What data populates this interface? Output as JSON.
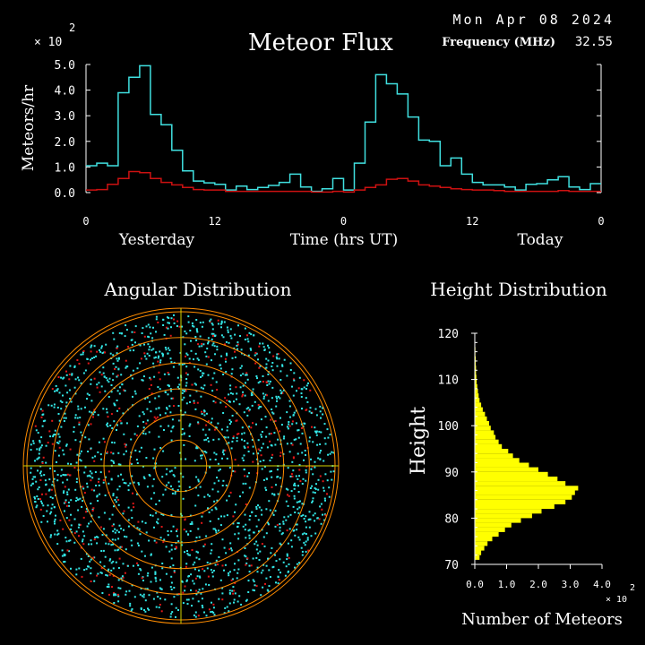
{
  "header": {
    "date": "Mon Apr 08 2024",
    "title": "Meteor Flux",
    "frequency_label": "Frequency (MHz)",
    "frequency_value": "32.55",
    "flux_multiplier": "× 10",
    "flux_exponent": "2"
  },
  "colors": {
    "background": "#000000",
    "text": "#ffffff",
    "line_total": "#40e0e0",
    "line_low": "#cc1111",
    "ring": "#ff8c00",
    "crosshair": "#d4d400",
    "points_cyan": "#33e6e6",
    "points_red": "#e01818",
    "histogram": "#ffff00"
  },
  "chart_data": [
    {
      "type": "line",
      "name": "meteor-flux",
      "ylabel": "Meteors/hr",
      "ylim": [
        0,
        5
      ],
      "yticks": [
        "0.0",
        "1.0",
        "2.0",
        "3.0",
        "4.0",
        "5.0"
      ],
      "xlim": [
        0,
        48
      ],
      "xticks": [
        "0",
        "12",
        "0",
        "12",
        "0"
      ],
      "xlabels": {
        "left": "Yesterday",
        "center": "Time (hrs UT)",
        "right": "Today"
      },
      "step": true,
      "series": [
        {
          "values": [
            1.05,
            1.15,
            1.05,
            3.9,
            4.5,
            4.95,
            3.05,
            2.65,
            1.65,
            0.85,
            0.45,
            0.38,
            0.32,
            0.1,
            0.25,
            0.12,
            0.2,
            0.28,
            0.4,
            0.72,
            0.22,
            0.05,
            0.15,
            0.55,
            0.1,
            1.15,
            2.75,
            4.6,
            4.25,
            3.85,
            2.95,
            2.05,
            2.0,
            1.05,
            1.35,
            0.72,
            0.4,
            0.3,
            0.3,
            0.22,
            0.1,
            0.32,
            0.35,
            0.5,
            0.62,
            0.22,
            0.12,
            0.35
          ]
        },
        {
          "values": [
            0.1,
            0.12,
            0.32,
            0.55,
            0.82,
            0.78,
            0.55,
            0.4,
            0.3,
            0.2,
            0.12,
            0.1,
            0.1,
            0.05,
            0.05,
            0.05,
            0.05,
            0.05,
            0.05,
            0.05,
            0.05,
            0.02,
            0.02,
            0.05,
            0.02,
            0.1,
            0.2,
            0.3,
            0.52,
            0.55,
            0.45,
            0.3,
            0.25,
            0.2,
            0.15,
            0.12,
            0.1,
            0.1,
            0.08,
            0.05,
            0.05,
            0.05,
            0.05,
            0.05,
            0.08,
            0.05,
            0.05,
            0.05
          ]
        }
      ]
    },
    {
      "type": "scatter",
      "name": "angular-distribution",
      "title": "Angular Distribution",
      "rings": 6
    },
    {
      "type": "bar",
      "orientation": "horizontal",
      "name": "height-distribution",
      "title": "Height Distribution",
      "ylabel": "Height",
      "xlabel": "Number of Meteors",
      "ylim": [
        70,
        120
      ],
      "yticks": [
        "70",
        "80",
        "90",
        "100",
        "110",
        "120"
      ],
      "xlim": [
        0,
        4.0
      ],
      "xticks": [
        "0.0",
        "1.0",
        "2.0",
        "3.0",
        "4.0"
      ],
      "x_multiplier": "× 10",
      "x_exponent": "2",
      "bin_start": 71,
      "bin_width": 1,
      "values": [
        0.15,
        0.2,
        0.3,
        0.4,
        0.55,
        0.75,
        0.95,
        1.15,
        1.45,
        1.8,
        2.1,
        2.5,
        2.85,
        3.05,
        3.15,
        3.25,
        2.85,
        2.6,
        2.3,
        2.0,
        1.7,
        1.4,
        1.2,
        1.05,
        0.85,
        0.75,
        0.65,
        0.6,
        0.5,
        0.45,
        0.38,
        0.32,
        0.25,
        0.2,
        0.15,
        0.12,
        0.1,
        0.08,
        0.06,
        0.05,
        0.04,
        0.04,
        0.03,
        0.03,
        0.02,
        0.02,
        0.01,
        0.01,
        0.01
      ]
    }
  ]
}
